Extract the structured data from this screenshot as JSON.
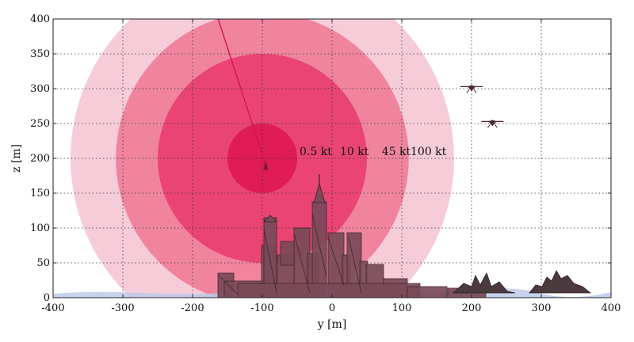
{
  "chart_data": {
    "type": "area",
    "xlabel": "y [m]",
    "ylabel": "z [m]",
    "xlim": [
      -400,
      400
    ],
    "ylim": [
      0,
      400
    ],
    "xticks": [
      -400,
      -300,
      -200,
      -100,
      0,
      100,
      200,
      300,
      400
    ],
    "yticks": [
      0,
      50,
      100,
      150,
      200,
      250,
      300,
      350,
      400
    ],
    "grid": true,
    "center": {
      "y": -100,
      "z": 200
    },
    "rings": [
      {
        "label": "100 kt",
        "radius_m": 275,
        "color": "#f7ccd9"
      },
      {
        "label": "45 kt",
        "radius_m": 210,
        "color": "#f0849f"
      },
      {
        "label": "10 kt",
        "radius_m": 150,
        "color": "#e94474"
      },
      {
        "label": "0.5 kt",
        "radius_m": 50,
        "color": "#df1c55"
      }
    ],
    "trajectory": {
      "from": {
        "y": -165,
        "z": 405
      },
      "to": {
        "y": -95,
        "z": 190
      },
      "color": "#d4134b"
    },
    "drones": [
      {
        "y": 200,
        "z": 303
      },
      {
        "y": 230,
        "z": 253
      }
    ],
    "colors": {
      "city": "#7a4a58",
      "city_edge": "#3a2228",
      "water": "#b9c8e8",
      "grid": "#333333"
    }
  }
}
